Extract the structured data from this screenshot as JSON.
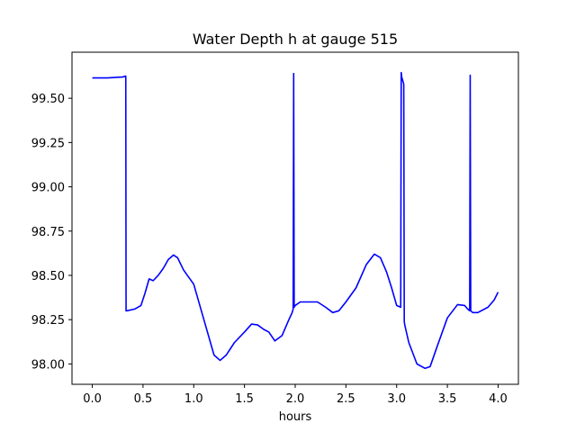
{
  "chart_data": {
    "type": "line",
    "title": "Water Depth h at gauge 515",
    "xlabel": "hours",
    "ylabel": "",
    "xlim": [
      -0.2,
      4.2
    ],
    "ylim": [
      97.885,
      99.76
    ],
    "xticks": [
      0.0,
      0.5,
      1.0,
      1.5,
      2.0,
      2.5,
      3.0,
      3.5,
      4.0
    ],
    "xtick_labels": [
      "0.0",
      "0.5",
      "1.0",
      "1.5",
      "2.0",
      "2.5",
      "3.0",
      "3.5",
      "4.0"
    ],
    "yticks": [
      98.0,
      98.25,
      98.5,
      98.75,
      99.0,
      99.25,
      99.5
    ],
    "ytick_labels": [
      "98.00",
      "98.25",
      "98.50",
      "98.75",
      "99.00",
      "99.25",
      "99.50"
    ],
    "grid": false,
    "series": [
      {
        "color": "#0000ff",
        "x": [
          0.0,
          0.15,
          0.3,
          0.33,
          0.333,
          0.34,
          0.42,
          0.48,
          0.52,
          0.56,
          0.6,
          0.65,
          0.7,
          0.75,
          0.8,
          0.84,
          0.9,
          1.0,
          1.1,
          1.2,
          1.26,
          1.32,
          1.4,
          1.5,
          1.57,
          1.63,
          1.69,
          1.74,
          1.8,
          1.87,
          1.93,
          1.97,
          1.98,
          1.985,
          1.99,
          2.0,
          2.05,
          2.15,
          2.22,
          2.3,
          2.37,
          2.43,
          2.5,
          2.6,
          2.7,
          2.78,
          2.84,
          2.9,
          2.95,
          3.0,
          3.04,
          3.045,
          3.05,
          3.07,
          3.075,
          3.08,
          3.12,
          3.2,
          3.28,
          3.33,
          3.4,
          3.5,
          3.6,
          3.67,
          3.7,
          3.72,
          3.725,
          3.73,
          3.75,
          3.8,
          3.9,
          3.96,
          4.0
        ],
        "y": [
          99.615,
          99.615,
          99.62,
          99.625,
          98.3,
          98.3,
          98.31,
          98.33,
          98.4,
          98.48,
          98.47,
          98.5,
          98.54,
          98.59,
          98.615,
          98.6,
          98.53,
          98.45,
          98.25,
          98.05,
          98.02,
          98.05,
          98.12,
          98.18,
          98.225,
          98.22,
          98.195,
          98.18,
          98.13,
          98.16,
          98.24,
          98.29,
          98.31,
          99.64,
          98.32,
          98.33,
          98.35,
          98.35,
          98.35,
          98.32,
          98.29,
          98.3,
          98.35,
          98.43,
          98.56,
          98.62,
          98.6,
          98.52,
          98.43,
          98.33,
          98.32,
          99.645,
          99.62,
          99.58,
          98.24,
          98.22,
          98.12,
          98.0,
          97.975,
          97.985,
          98.1,
          98.26,
          98.335,
          98.33,
          98.31,
          98.3,
          99.63,
          98.3,
          98.29,
          98.29,
          98.32,
          98.36,
          98.405
        ]
      }
    ]
  }
}
